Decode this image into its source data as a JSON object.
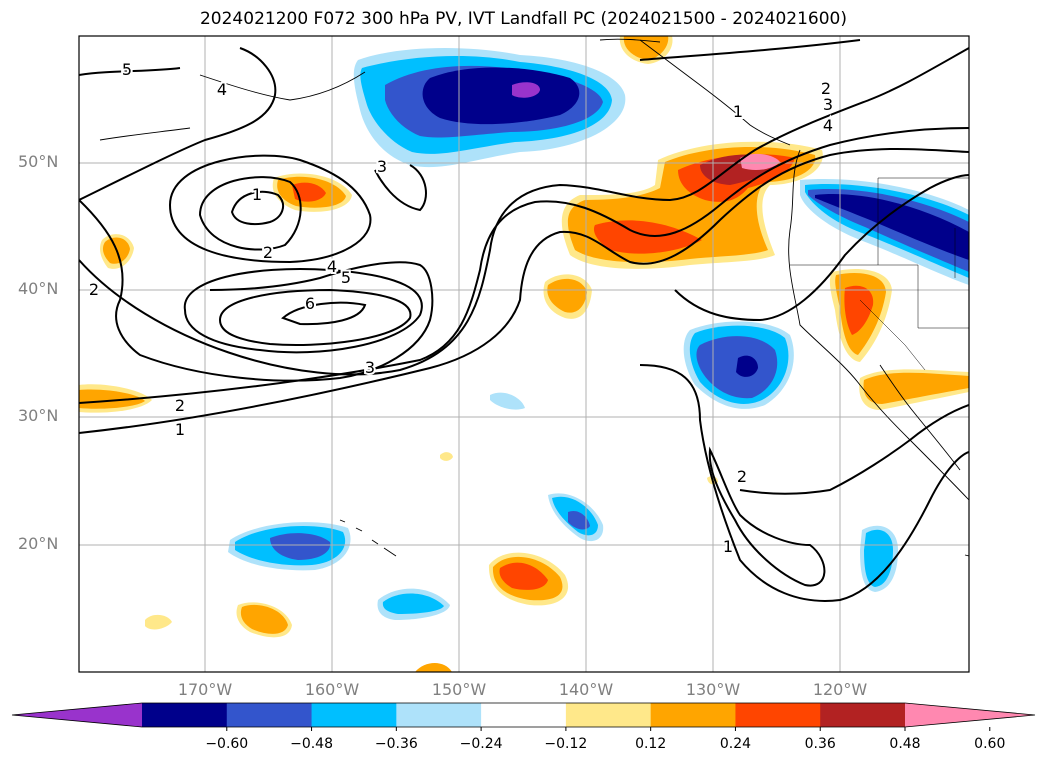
{
  "title": "2024021200 F072 300 hPa PV, IVT Landfall PC (2024021500 - 2024021600)",
  "map": {
    "lat_ticks": [
      {
        "label": "50°N",
        "lat": 50
      },
      {
        "label": "40°N",
        "lat": 40
      },
      {
        "label": "30°N",
        "lat": 30
      },
      {
        "label": "20°N",
        "lat": 20
      }
    ],
    "lon_ticks": [
      {
        "label": "170°W",
        "lon": -170
      },
      {
        "label": "160°W",
        "lon": -160
      },
      {
        "label": "150°W",
        "lon": -150
      },
      {
        "label": "140°W",
        "lon": -140
      },
      {
        "label": "130°W",
        "lon": -130
      },
      {
        "label": "120°W",
        "lon": -120
      }
    ],
    "extent": {
      "lon_min": -180,
      "lon_max": -110,
      "lat_min": 10,
      "lat_max": 60
    },
    "gridlines": true,
    "contour_labels": [
      "5",
      "4",
      "1",
      "2",
      "3",
      "4",
      "5",
      "6",
      "3",
      "2",
      "1",
      "2",
      "3",
      "4",
      "2",
      "1",
      "2",
      "1"
    ]
  },
  "colorbar": {
    "tick_labels": [
      "−0.60",
      "−0.48",
      "−0.36",
      "−0.24",
      "−0.12",
      "0.12",
      "0.24",
      "0.36",
      "0.48",
      "0.60"
    ],
    "colors": [
      "#9933cc",
      "#00008b",
      "#3355cc",
      "#00bfff",
      "#aee2fa",
      "#ffffff",
      "#ffe88a",
      "#ffa500",
      "#ff4500",
      "#b22222",
      "#ff88b0"
    ]
  }
}
